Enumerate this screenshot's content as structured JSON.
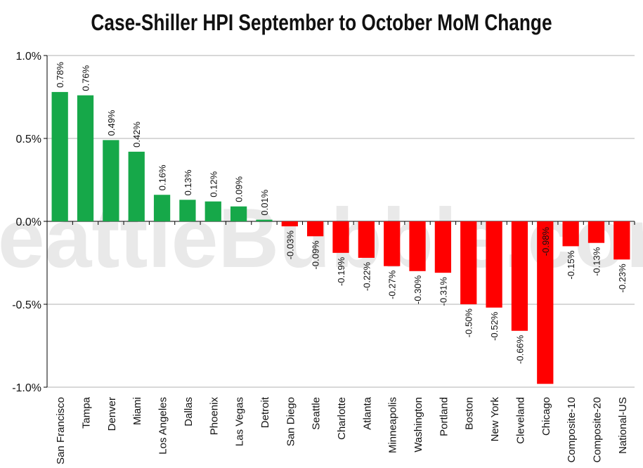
{
  "watermark": "SeattleBubble.com",
  "colors": {
    "positive": "#16a849",
    "negative": "#ff0000",
    "grid": "#b0b0b0",
    "axis": "#000000"
  },
  "chart_data": {
    "type": "bar",
    "title": "Case-Shiller HPI September to October MoM Change",
    "xlabel": "",
    "ylabel": "",
    "ylim": [
      -1.0,
      1.0
    ],
    "yticks": [
      1.0,
      0.5,
      0.0,
      -0.5,
      -1.0
    ],
    "ytick_labels": [
      "1.0%",
      "0.5%",
      "0.0%",
      "-0.5%",
      "-1.0%"
    ],
    "grid": true,
    "categories": [
      "San Francisco",
      "Tampa",
      "Denver",
      "Miami",
      "Los Angeles",
      "Dallas",
      "Phoenix",
      "Las Vegas",
      "Detroit",
      "San Diego",
      "Seattle",
      "Charlotte",
      "Atlanta",
      "Minneapolis",
      "Washington",
      "Portland",
      "Boston",
      "New York",
      "Cleveland",
      "Chicago",
      "Composite-10",
      "Composite-20",
      "National-US"
    ],
    "values": [
      0.78,
      0.76,
      0.49,
      0.42,
      0.16,
      0.13,
      0.12,
      0.09,
      0.01,
      -0.03,
      -0.09,
      -0.19,
      -0.22,
      -0.27,
      -0.3,
      -0.31,
      -0.5,
      -0.52,
      -0.66,
      -0.98,
      -0.15,
      -0.13,
      -0.23
    ],
    "data_labels": [
      "0.78%",
      "0.76%",
      "0.49%",
      "0.42%",
      "0.16%",
      "0.13%",
      "0.12%",
      "0.09%",
      "0.01%",
      "-0.03%",
      "-0.09%",
      "-0.19%",
      "-0.22%",
      "-0.27%",
      "-0.30%",
      "-0.31%",
      "-0.50%",
      "-0.52%",
      "-0.66%",
      "-0.98%",
      "-0.15%",
      "-0.13%",
      "-0.23%"
    ]
  }
}
